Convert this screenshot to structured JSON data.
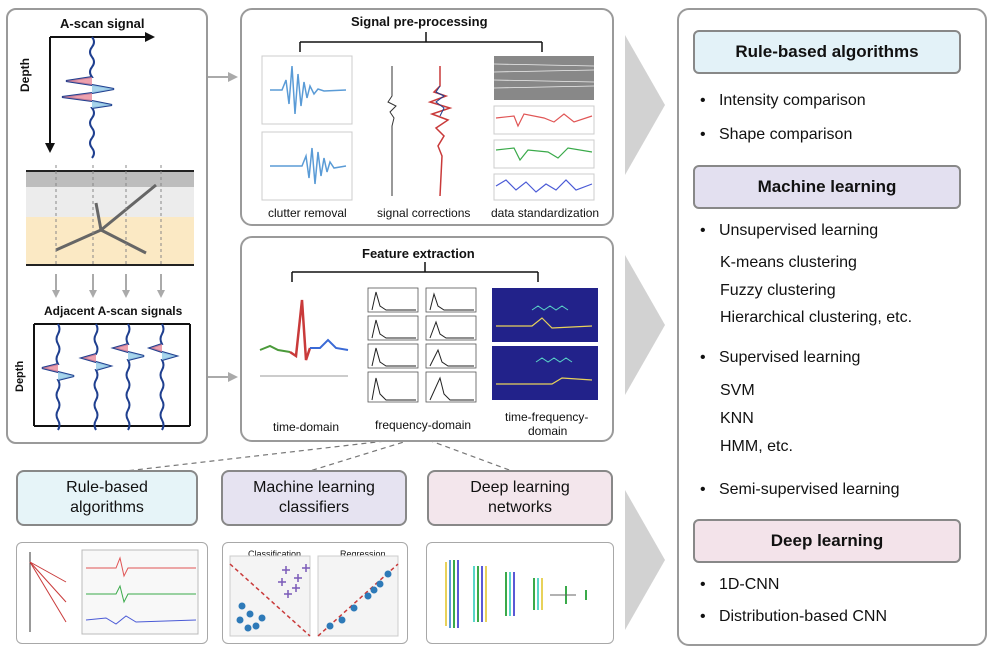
{
  "left_panel": {
    "ascan_title": "A-scan signal",
    "depth_label": "Depth",
    "adjacent_title": "Adjacent A-scan signals",
    "depth_label2": "Depth"
  },
  "preprocessing": {
    "title": "Signal pre-processing",
    "captions": [
      "clutter removal",
      "signal corrections",
      "data standardization"
    ]
  },
  "feature": {
    "title": "Feature extraction",
    "captions": [
      "time-domain",
      "frequency-domain",
      "time-frequency-",
      "domain"
    ]
  },
  "categories": [
    {
      "line1": "Rule-based",
      "line2": "algorithms",
      "color": "#e6f4f8"
    },
    {
      "line1": "Machine learning",
      "line2": "classifiers",
      "color": "#e6e3f1"
    },
    {
      "line1": "Deep learning",
      "line2": "networks",
      "color": "#f3e6ec"
    }
  ],
  "thumbnails": {
    "classification": "Classification",
    "regression": "Regression"
  },
  "right_panel": {
    "rule_header": "Rule-based algorithms",
    "rule_items": [
      "Intensity comparison",
      "Shape comparison"
    ],
    "ml_header": "Machine learning",
    "unsupervised": "Unsupervised learning",
    "unsupervised_sub": [
      "K-means clustering",
      "Fuzzy clustering",
      "Hierarchical clustering, etc."
    ],
    "supervised": "Supervised learning",
    "supervised_sub": [
      "SVM",
      "KNN",
      "HMM, etc."
    ],
    "semi": "Semi-supervised learning",
    "dl_header": "Deep learning",
    "dl_items": [
      "1D-CNN",
      "Distribution-based CNN"
    ],
    "colors": {
      "rule": "#e3f2f8",
      "ml": "#e3e0f0",
      "dl": "#f3e3ea"
    }
  }
}
